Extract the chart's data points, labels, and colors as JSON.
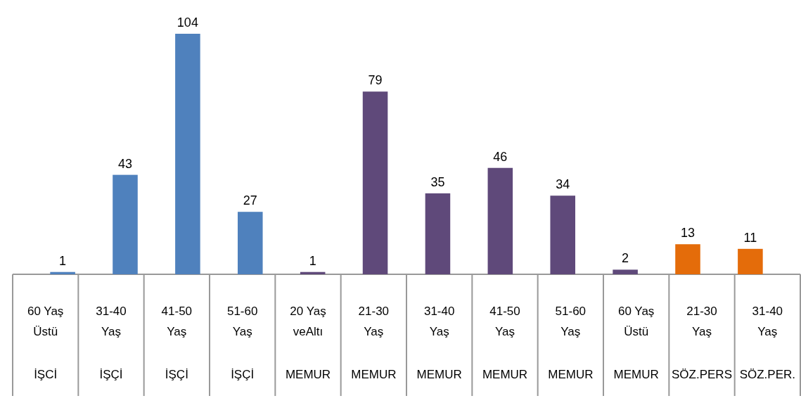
{
  "chart_data": {
    "type": "bar",
    "categories": [
      "60 Yaş\nÜstü\nİŞCİ",
      "31-40\nYaş\nİŞÇİ",
      "41-50\nYaş\nİŞÇİ",
      "51-60\nYaş\nİŞÇİ",
      "20 Yaş\nveAltı\nMEMUR",
      "21-30\nYaş\nMEMUR",
      "31-40\nYaş\nMEMUR",
      "41-50\nYaş\nMEMUR",
      "51-60\nYaş\nMEMUR",
      "60 Yaş\nÜstü\nMEMUR",
      "21-30\nYaş\nSÖZ.PERS",
      "31-40\nYaş\nSÖZ.PER."
    ],
    "values": [
      1,
      43,
      104,
      27,
      1,
      79,
      35,
      46,
      34,
      2,
      13,
      11
    ],
    "colors": [
      "#4f81bd",
      "#4f81bd",
      "#4f81bd",
      "#4f81bd",
      "#5f497a",
      "#5f497a",
      "#5f497a",
      "#5f497a",
      "#5f497a",
      "#5f497a",
      "#e46c0a",
      "#e46c0a"
    ],
    "data_labels": true
  }
}
